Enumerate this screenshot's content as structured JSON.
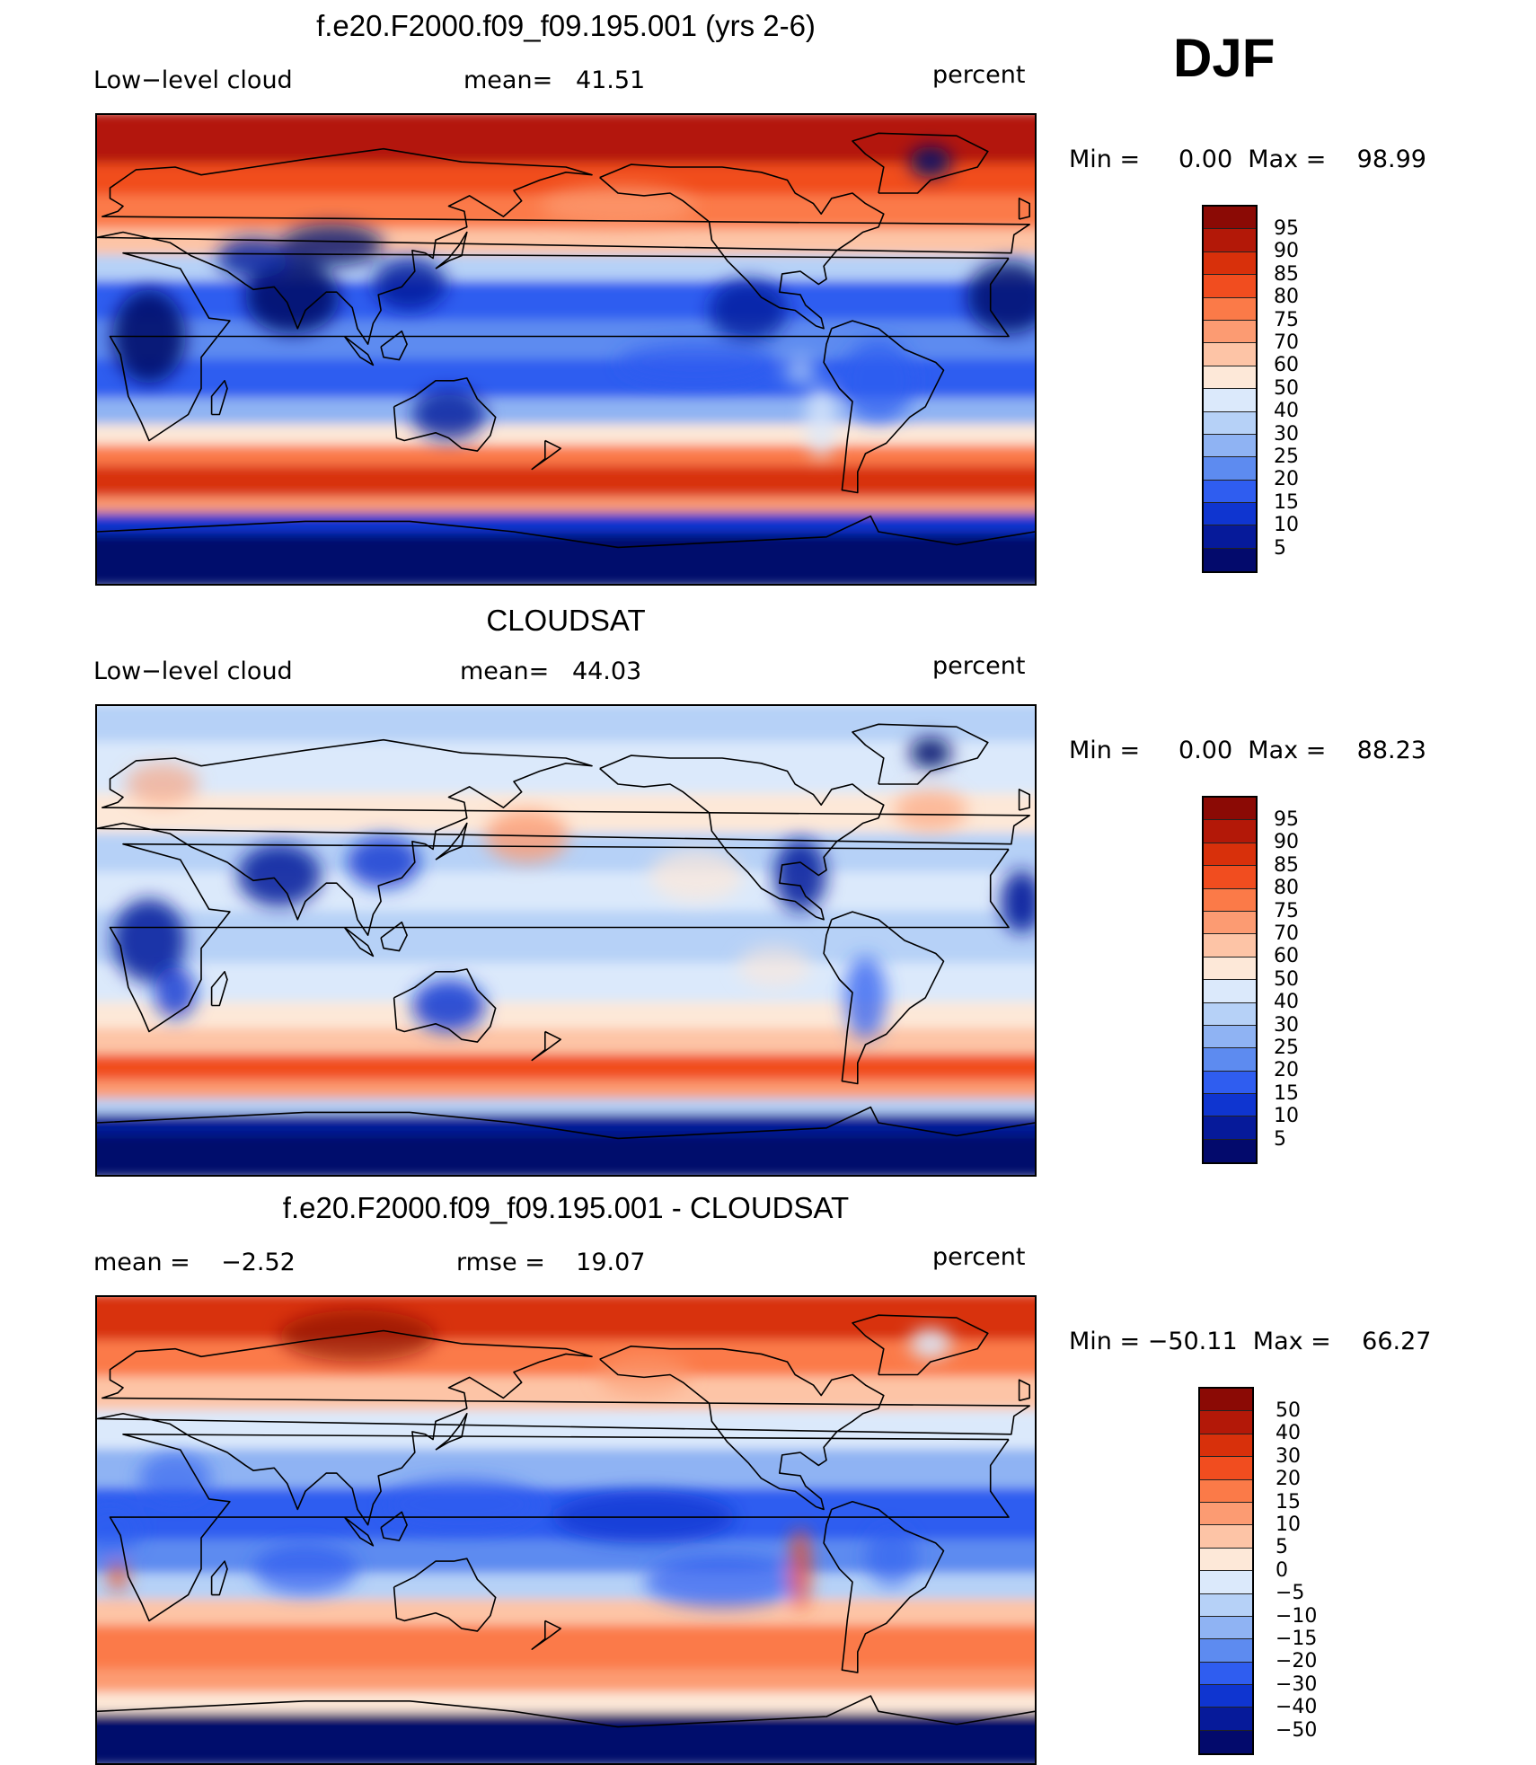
{
  "season": "DJF",
  "palettes": {
    "absolute": [
      "#8b0a05",
      "#b31808",
      "#d8300b",
      "#f14d1f",
      "#fb7a48",
      "#fc9b72",
      "#fdc4a6",
      "#fde8d8",
      "#dbe9fb",
      "#b6d1f7",
      "#8fb3f3",
      "#5d8bf0",
      "#2f5df0",
      "#0f35d0",
      "#061a9a",
      "#030a6c"
    ],
    "difference": [
      "#8b0a05",
      "#b31808",
      "#d8300b",
      "#f14d1f",
      "#fb7a48",
      "#fc9b72",
      "#fdc4a6",
      "#fde8d8",
      "#dbe9fb",
      "#b6d1f7",
      "#8fb3f3",
      "#5d8bf0",
      "#2f5df0",
      "#0f35d0",
      "#061a9a",
      "#030a6c"
    ]
  },
  "panels": [
    {
      "title": "f.e20.F2000.f09_f09.195.001 (yrs 2-6)",
      "left_text": "Low−level cloud",
      "center_text": "mean=   41.51",
      "right_text": "percent",
      "minmax": "Min =     0.00  Max =    98.99",
      "map_name": "model-low-cloud-map",
      "colorbar_labels": [
        "95",
        "90",
        "85",
        "80",
        "75",
        "70",
        "60",
        "50",
        "40",
        "30",
        "25",
        "20",
        "15",
        "10",
        "5"
      ],
      "chart_data": {
        "type": "heatmap",
        "field": "Low-level cloud fraction (model, DJF)",
        "units": "percent",
        "mean": 41.51,
        "min": 0.0,
        "max": 98.99,
        "contour_levels": [
          5,
          10,
          15,
          20,
          25,
          30,
          40,
          50,
          60,
          70,
          75,
          80,
          85,
          90,
          95
        ]
      }
    },
    {
      "title": "CLOUDSAT",
      "left_text": "Low−level cloud",
      "center_text": "mean=   44.03",
      "right_text": "percent",
      "minmax": "Min =     0.00  Max =    88.23",
      "map_name": "cloudsat-low-cloud-map",
      "colorbar_labels": [
        "95",
        "90",
        "85",
        "80",
        "75",
        "70",
        "60",
        "50",
        "40",
        "30",
        "25",
        "20",
        "15",
        "10",
        "5"
      ],
      "chart_data": {
        "type": "heatmap",
        "field": "Low-level cloud fraction (CloudSat, DJF)",
        "units": "percent",
        "mean": 44.03,
        "min": 0.0,
        "max": 88.23,
        "contour_levels": [
          5,
          10,
          15,
          20,
          25,
          30,
          40,
          50,
          60,
          70,
          75,
          80,
          85,
          90,
          95
        ]
      }
    },
    {
      "title": "f.e20.F2000.f09_f09.195.001 - CLOUDSAT",
      "left_text": "mean =    −2.52",
      "center_text": "rmse =    19.07",
      "right_text": "percent",
      "minmax": "Min = −50.11  Max =    66.27",
      "map_name": "difference-map",
      "colorbar_labels": [
        "50",
        "40",
        "30",
        "20",
        "15",
        "10",
        "5",
        "0",
        "−5",
        "−10",
        "−15",
        "−20",
        "−30",
        "−40",
        "−50"
      ],
      "chart_data": {
        "type": "heatmap",
        "field": "Low-level cloud difference (model - CloudSat, DJF)",
        "units": "percent",
        "mean": -2.52,
        "rmse": 19.07,
        "min": -50.11,
        "max": 66.27,
        "contour_levels": [
          -50,
          -40,
          -30,
          -20,
          -15,
          -10,
          -5,
          0,
          5,
          10,
          15,
          20,
          30,
          40,
          50
        ]
      }
    }
  ]
}
